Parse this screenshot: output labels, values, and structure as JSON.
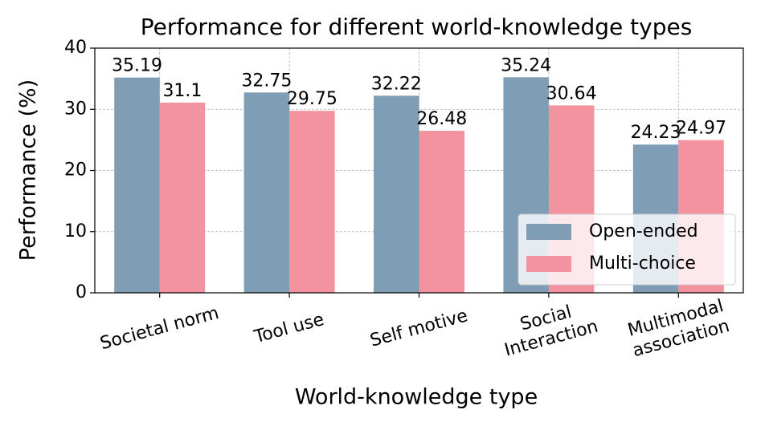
{
  "chart_data": {
    "type": "bar",
    "title": "Performance for different world-knowledge types",
    "x_label": "World-knowledge type",
    "y_label": "Performance (%)",
    "categories": [
      "Societal norm",
      "Tool use",
      "Self motive",
      "Social\nInteraction",
      "Multimodal\nassociation"
    ],
    "series": [
      {
        "name": "Open-ended",
        "color": "#7f9db4",
        "values": [
          35.19,
          32.75,
          32.22,
          35.24,
          24.23
        ]
      },
      {
        "name": "Multi-choice",
        "color": "#f2939f",
        "values": [
          31.1,
          29.75,
          26.48,
          30.64,
          24.97
        ]
      }
    ],
    "ylim": [
      0,
      40
    ],
    "yticks": [
      0,
      10,
      20,
      30,
      40
    ],
    "grid": true,
    "legend_position": "lower right"
  }
}
